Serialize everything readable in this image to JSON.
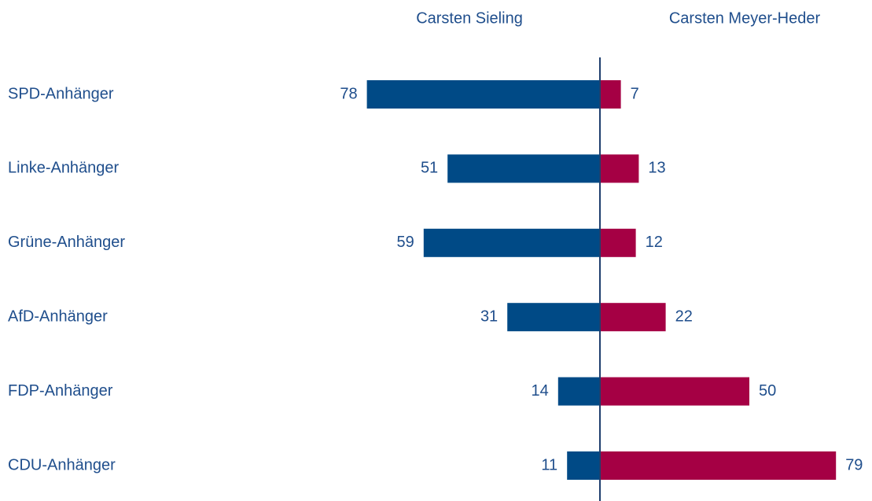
{
  "chart_data": {
    "type": "diverging-bar",
    "categories": [
      "SPD-Anhänger",
      "Linke-Anhänger",
      "Grüne-Anhänger",
      "AfD-Anhänger",
      "FDP-Anhänger",
      "CDU-Anhänger"
    ],
    "series": [
      {
        "name": "Carsten Sieling",
        "color": "#004a86",
        "values": [
          78,
          51,
          59,
          31,
          14,
          11
        ]
      },
      {
        "name": "Carsten Meyer-Heder",
        "color": "#a50044",
        "values": [
          7,
          13,
          12,
          22,
          50,
          79
        ]
      }
    ],
    "xlim": [
      0,
      80
    ]
  }
}
